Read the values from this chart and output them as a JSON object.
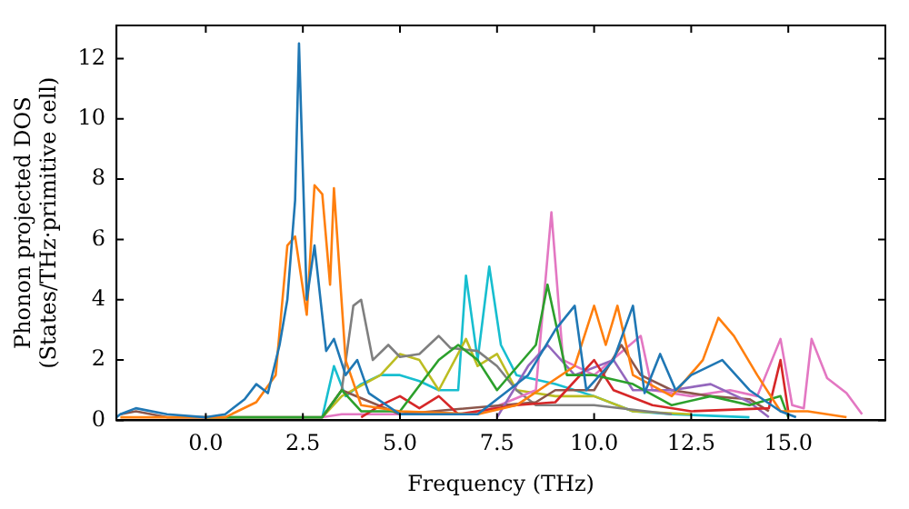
{
  "chart_data": {
    "type": "line",
    "xlabel": "Frequency (THz)",
    "ylabel": "Phonon projected DOS\n(States/THz·primitive cell)",
    "marker": "none",
    "grid": false,
    "legend": false,
    "xlim": [
      -2.3,
      17.5
    ],
    "xticks": [
      {
        "value": 0,
        "label": "0.0"
      },
      {
        "value": 2.5,
        "label": "2.5"
      },
      {
        "value": 5,
        "label": "5.0"
      },
      {
        "value": 7.5,
        "label": "7.5"
      },
      {
        "value": 10,
        "label": "10.0"
      },
      {
        "value": 12.5,
        "label": "12.5"
      },
      {
        "value": 15,
        "label": "15.0"
      }
    ],
    "ylim": [
      0,
      13.1
    ],
    "yticks": [
      0,
      2,
      4,
      6,
      8,
      10,
      12
    ],
    "series": [
      {
        "color": "#1f77b4",
        "x": [
          -2.3,
          -2.2,
          -1.8,
          -1,
          0,
          0.5,
          1.0,
          1.3,
          1.6,
          1.9,
          2.1,
          2.3,
          2.4,
          2.6,
          2.8,
          3.1,
          3.3,
          3.6,
          3.9,
          4.2,
          5,
          7,
          8.3,
          9.0,
          9.5,
          9.8,
          10.5,
          11.0,
          11.3,
          11.7,
          12.1,
          12.5,
          13.3,
          14,
          14.8,
          15.2
        ],
        "values": [
          0.1,
          0.2,
          0.4,
          0.2,
          0.1,
          0.2,
          0.7,
          1.2,
          0.9,
          2.5,
          4.0,
          7.3,
          12.5,
          4.0,
          5.8,
          2.3,
          2.7,
          1.5,
          2.0,
          0.9,
          0.2,
          0.2,
          1.5,
          3.0,
          3.8,
          1.0,
          2.0,
          3.8,
          0.9,
          2.2,
          1.0,
          1.5,
          2.0,
          1.0,
          0.3,
          0.1
        ]
      },
      {
        "color": "#ff7f0e",
        "x": [
          -2.2,
          -2,
          0.5,
          1.3,
          1.8,
          2.1,
          2.3,
          2.6,
          2.8,
          3.0,
          3.2,
          3.3,
          3.6,
          4,
          5,
          7,
          8,
          9.5,
          10.0,
          10.3,
          10.6,
          11,
          12,
          12.8,
          13.2,
          13.6,
          14.2,
          14.8,
          15.5,
          16.5
        ],
        "values": [
          0.1,
          0.1,
          0.1,
          0.6,
          1.5,
          5.8,
          6.1,
          3.5,
          7.8,
          7.5,
          4.5,
          7.7,
          2.0,
          0.5,
          0.3,
          0.2,
          0.5,
          1.8,
          3.8,
          2.5,
          3.8,
          1.5,
          0.8,
          2.0,
          3.4,
          2.8,
          1.5,
          0.3,
          0.3,
          0.1
        ]
      },
      {
        "color": "#2ca02c",
        "x": [
          0,
          3,
          3.5,
          4,
          5,
          6,
          6.5,
          7,
          7.5,
          8.5,
          8.8,
          9.3,
          10,
          11,
          12,
          13,
          14,
          14.8,
          15
        ],
        "values": [
          0.1,
          0.1,
          1.0,
          0.3,
          0.3,
          2.0,
          2.5,
          2.0,
          1.0,
          2.5,
          4.5,
          1.5,
          1.5,
          1.2,
          0.5,
          0.8,
          0.5,
          0.8,
          0.1
        ]
      },
      {
        "color": "#d62728",
        "x": [
          4,
          4.5,
          5.0,
          5.5,
          6.0,
          6.5,
          8,
          9,
          10,
          10.5,
          11.5,
          12.5,
          14.5,
          14.8,
          15.0
        ],
        "values": [
          0.1,
          0.5,
          0.8,
          0.4,
          0.8,
          0.2,
          0.5,
          0.6,
          2.0,
          1.0,
          0.5,
          0.3,
          0.4,
          2.0,
          0.3
        ]
      },
      {
        "color": "#9467bd",
        "x": [
          7.5,
          8.3,
          8.8,
          9.5,
          10.5,
          11,
          12,
          13,
          14,
          14.5
        ],
        "values": [
          0.1,
          1.8,
          2.5,
          1.5,
          2.0,
          1.0,
          1.0,
          1.2,
          0.6,
          0.1
        ]
      },
      {
        "color": "#8c564b",
        "x": [
          -2.2,
          -1.8,
          -1,
          3,
          3.5,
          5,
          8.5,
          9,
          10,
          10.7,
          11.2,
          12,
          13,
          14,
          14.5
        ],
        "values": [
          0.2,
          0.3,
          0.1,
          0.1,
          1.0,
          0.2,
          0.6,
          1.0,
          1.0,
          2.5,
          1.5,
          1.0,
          0.8,
          0.7,
          0.3
        ]
      },
      {
        "color": "#e377c2",
        "x": [
          3,
          3.5,
          7,
          8.5,
          8.9,
          9.2,
          10,
          11.2,
          11.5,
          12.5,
          13.5,
          14.2,
          14.8,
          15.1,
          15.4,
          15.6,
          16.0,
          16.5,
          16.9
        ],
        "values": [
          0.1,
          0.2,
          0.2,
          1.0,
          6.9,
          2.0,
          1.5,
          2.8,
          1.0,
          0.8,
          1.0,
          0.8,
          2.7,
          0.5,
          0.4,
          2.7,
          1.4,
          0.9,
          0.2
        ]
      },
      {
        "color": "#7f7f7f",
        "x": [
          3,
          3.5,
          3.8,
          4.0,
          4.3,
          4.7,
          5.0,
          5.5,
          6.0,
          6.3,
          7,
          7.5,
          8,
          8.5,
          10,
          12
        ],
        "values": [
          0.1,
          1.0,
          3.8,
          4.0,
          2.0,
          2.5,
          2.1,
          2.2,
          2.8,
          2.4,
          2.3,
          1.8,
          1.0,
          0.5,
          0.5,
          0.2
        ]
      },
      {
        "color": "#bcbd22",
        "x": [
          3,
          3.5,
          4.5,
          5,
          5.5,
          6,
          6.7,
          7.0,
          7.5,
          8,
          9,
          10,
          11,
          12.5
        ],
        "values": [
          0.1,
          0.8,
          1.5,
          2.2,
          2.0,
          1.0,
          2.7,
          1.8,
          2.2,
          1.0,
          0.8,
          0.8,
          0.3,
          0.2
        ]
      },
      {
        "color": "#17becf",
        "x": [
          3,
          3.3,
          3.6,
          4.0,
          4.5,
          5.0,
          5.5,
          6.0,
          6.5,
          6.7,
          7.0,
          7.3,
          7.6,
          8,
          9,
          10,
          11,
          12,
          14
        ],
        "values": [
          0.1,
          1.8,
          0.8,
          1.2,
          1.5,
          1.5,
          1.3,
          1.0,
          1.0,
          4.8,
          2.0,
          5.1,
          2.5,
          1.5,
          1.2,
          0.8,
          0.3,
          0.2,
          0.1
        ]
      }
    ]
  }
}
